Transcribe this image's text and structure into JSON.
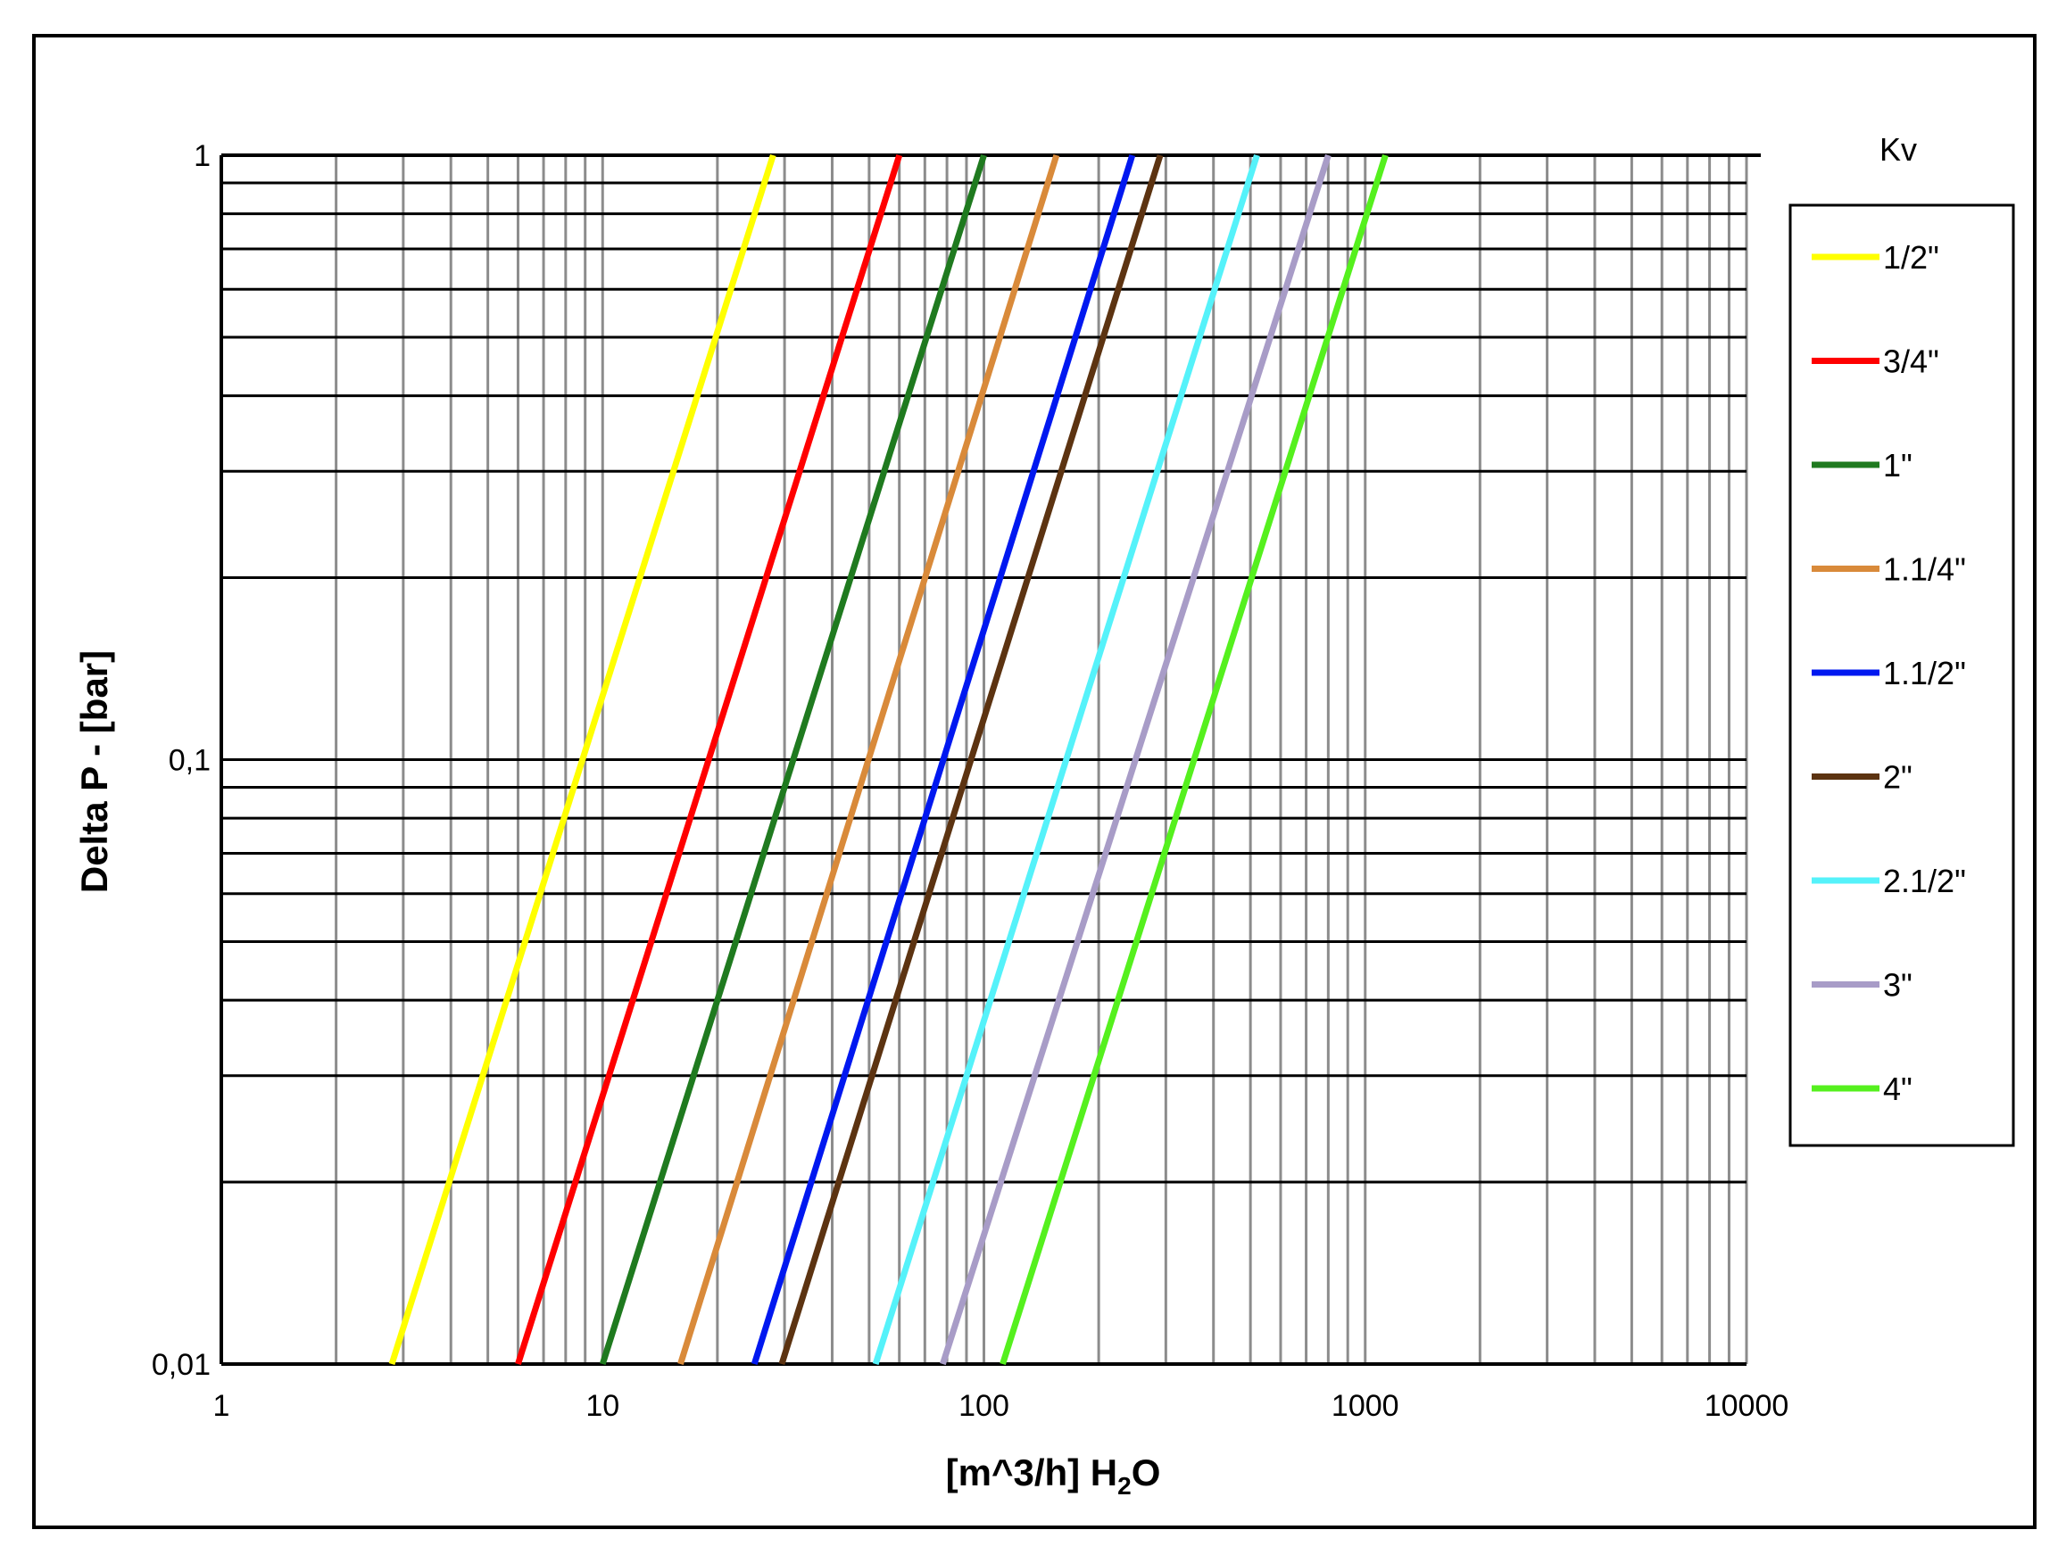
{
  "chart_data": {
    "type": "line",
    "xscale": "log",
    "yscale": "log",
    "xlim": [
      1,
      10000
    ],
    "ylim": [
      0.01,
      1
    ],
    "xticks": [
      "1",
      "10",
      "100",
      "1000",
      "10000"
    ],
    "yticks": [
      "0,01",
      "0,1",
      "1"
    ],
    "xlabel_main": "[m^3/h] H",
    "xlabel_sub": "2",
    "xlabel_end": "O",
    "ylabel": "Delta P - [bar]",
    "legend_title": "Kv",
    "legend_position": "right",
    "grid": true,
    "series": [
      {
        "name": "1/2\"",
        "color": "#FFFF00",
        "x": [
          2.8,
          28
        ],
        "y": [
          0.01,
          1
        ]
      },
      {
        "name": "3/4\"",
        "color": "#FF0000",
        "x": [
          6,
          60
        ],
        "y": [
          0.01,
          1
        ]
      },
      {
        "name": "1\"",
        "color": "#1F7A1F",
        "x": [
          10,
          100
        ],
        "y": [
          0.01,
          1
        ]
      },
      {
        "name": "1.1/4\"",
        "color": "#D98A3A",
        "x": [
          16,
          155
        ],
        "y": [
          0.01,
          1
        ]
      },
      {
        "name": "1.1/2\"",
        "color": "#0018F0",
        "x": [
          25,
          245
        ],
        "y": [
          0.01,
          1
        ]
      },
      {
        "name": "2\"",
        "color": "#5C3311",
        "x": [
          29.5,
          290
        ],
        "y": [
          0.01,
          1
        ]
      },
      {
        "name": "2.1/2\"",
        "color": "#55F2FA",
        "x": [
          52,
          520
        ],
        "y": [
          0.01,
          1
        ]
      },
      {
        "name": "3\"",
        "color": "#A89CC7",
        "x": [
          78,
          800
        ],
        "y": [
          0.01,
          1
        ]
      },
      {
        "name": "4\"",
        "color": "#55F01E",
        "x": [
          112,
          1130
        ],
        "y": [
          0.01,
          1
        ]
      }
    ]
  }
}
